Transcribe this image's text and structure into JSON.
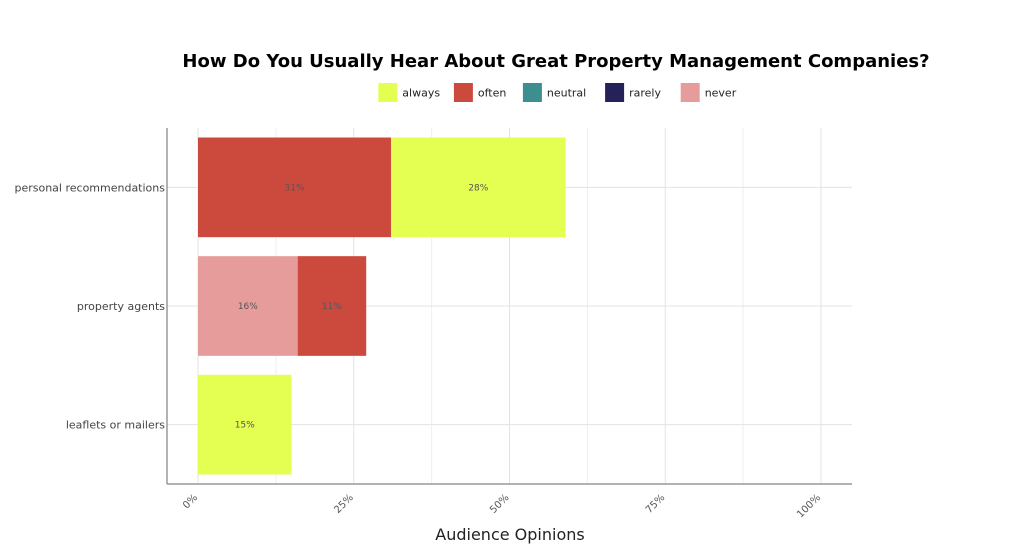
{
  "chart_data": {
    "type": "bar",
    "orientation": "horizontal",
    "stacked": true,
    "title": "How Do You Usually Hear About Great Property Management Companies?",
    "xlabel": "Audience Opinions",
    "ylabel": "",
    "xlim": [
      0,
      100
    ],
    "x_ticks": [
      "0%",
      "25%",
      "50%",
      "75%",
      "100%"
    ],
    "grid": true,
    "legend_position": "top",
    "categories": [
      "personal recommendations",
      "property agents",
      "leaflets or mailers"
    ],
    "series": [
      {
        "name": "always",
        "color": "#e4ff52",
        "values": [
          28,
          0,
          15
        ]
      },
      {
        "name": "often",
        "color": "#cc4a3d",
        "values": [
          31,
          11,
          0
        ]
      },
      {
        "name": "neutral",
        "color": "#3d8f8f",
        "values": [
          0,
          0,
          0
        ]
      },
      {
        "name": "rarely",
        "color": "#25225a",
        "values": [
          0,
          0,
          0
        ]
      },
      {
        "name": "never",
        "color": "#e59c9a",
        "values": [
          0,
          16,
          0
        ]
      }
    ],
    "stack_order": [
      [
        "often",
        "always"
      ],
      [
        "never",
        "often"
      ],
      [
        "always"
      ]
    ],
    "bar_labels": [
      [
        "31%",
        "28%"
      ],
      [
        "16%",
        "11%"
      ],
      [
        "15%"
      ]
    ]
  }
}
